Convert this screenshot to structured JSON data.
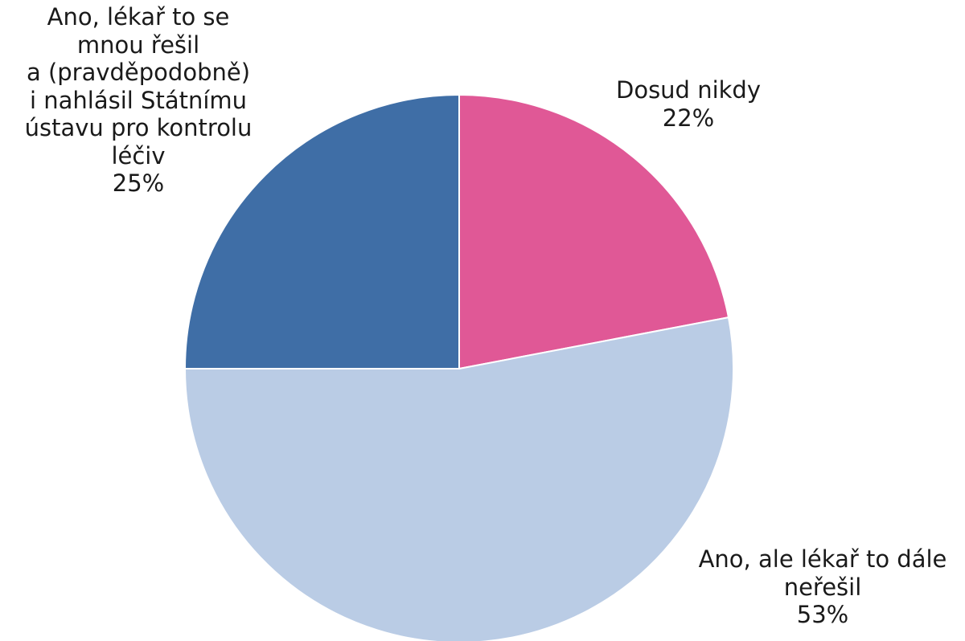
{
  "chart_data": {
    "type": "pie",
    "title": "",
    "slices": [
      {
        "name": "Dosud nikdy",
        "value": 22,
        "value_label": "22%",
        "color": "#E05896",
        "label_lines": [
          "Dosud nikdy"
        ]
      },
      {
        "name": "Ano, ale lékař to dále neřešil",
        "value": 53,
        "value_label": "53%",
        "color": "#BACCE5",
        "label_lines": [
          "Ano, ale lékař to dále",
          "neřešil"
        ]
      },
      {
        "name": "Ano, lékař to se mnou řešil a (pravděpodobně) i nahlásil Státnímu ústavu pro kontrolu léčiv",
        "value": 25,
        "value_label": "25%",
        "color": "#3F6EA6",
        "label_lines": [
          "Ano, lékař to se",
          "mnou řešil",
          "a (pravděpodobně)",
          "i nahlásil Státnímu",
          "ústavu pro kontrolu",
          "léčiv"
        ]
      }
    ],
    "start_angle": "12 o'clock",
    "direction": "clockwise",
    "legend": "none",
    "data_labels": "outside"
  }
}
